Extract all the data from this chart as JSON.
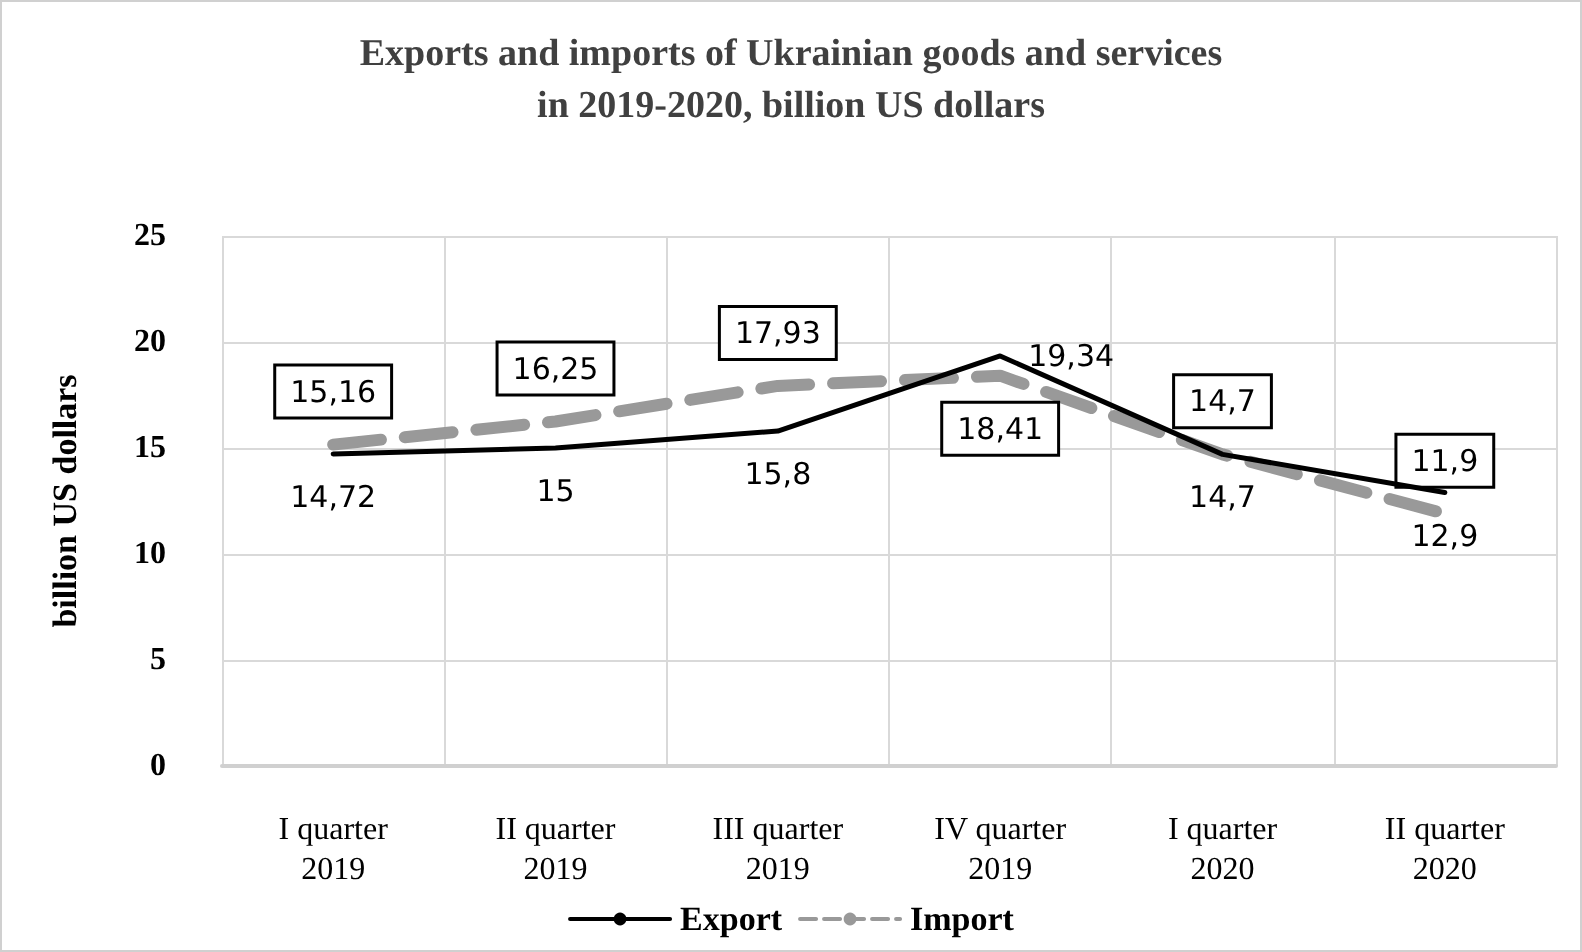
{
  "chart_data": {
    "type": "line",
    "title": "Exports and imports of Ukrainian goods and services\nin 2019-2020, billion US dollars",
    "ylabel": "billion US dollars",
    "categories": [
      "I quarter\n2019",
      "II quarter\n2019",
      "III quarter\n2019",
      "IV quarter\n2019",
      "I quarter\n2020",
      "II quarter\n2020"
    ],
    "series": [
      {
        "name": "Export",
        "color": "#000000",
        "line_style": "solid",
        "values": [
          14.72,
          15,
          15.8,
          19.34,
          14.7,
          12.9
        ],
        "value_labels": [
          "14,72",
          "15",
          "15,8",
          "19,34",
          "14,7",
          "12,9"
        ]
      },
      {
        "name": "Import",
        "color": "#999999",
        "line_style": "dashed",
        "values": [
          15.16,
          16.25,
          17.93,
          18.41,
          14.7,
          11.9
        ],
        "value_labels": [
          "15,16",
          "16,25",
          "17,93",
          "18,41",
          "14,7",
          "11,9"
        ]
      }
    ],
    "ylim": [
      0,
      25
    ],
    "yticks": [
      0,
      5,
      10,
      15,
      20,
      25
    ],
    "grid": true,
    "legend": "bottom",
    "marker": "none"
  }
}
